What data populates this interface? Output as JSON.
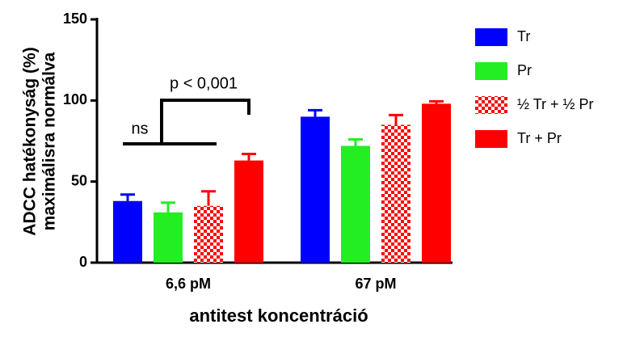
{
  "chart_data": {
    "type": "bar",
    "y_label_lines": [
      "ADCC hatékonyság (%)",
      "maximálisra normálva"
    ],
    "x_label": "antitest koncentráció",
    "categories": [
      "6,6 pM",
      "67 pM"
    ],
    "series": [
      {
        "name": "Tr",
        "color": "#0000ff",
        "values": [
          38,
          90
        ],
        "errors": [
          4,
          4
        ]
      },
      {
        "name": "Pr",
        "color": "#22ee22",
        "values": [
          31,
          72
        ],
        "errors": [
          6,
          4
        ]
      },
      {
        "name": "½ Tr + ½ Pr",
        "color": "#ff0000",
        "pattern": "checker",
        "values": [
          35,
          85
        ],
        "errors": [
          9,
          6
        ]
      },
      {
        "name": "Tr + Pr",
        "color": "#ff0000",
        "values": [
          63,
          98
        ],
        "errors": [
          4,
          1.5
        ]
      }
    ],
    "annotations": [
      "ns",
      "p < 0,001"
    ],
    "ylim": [
      0,
      150
    ],
    "yticks": [
      0,
      50,
      100,
      150
    ],
    "grid": false
  }
}
